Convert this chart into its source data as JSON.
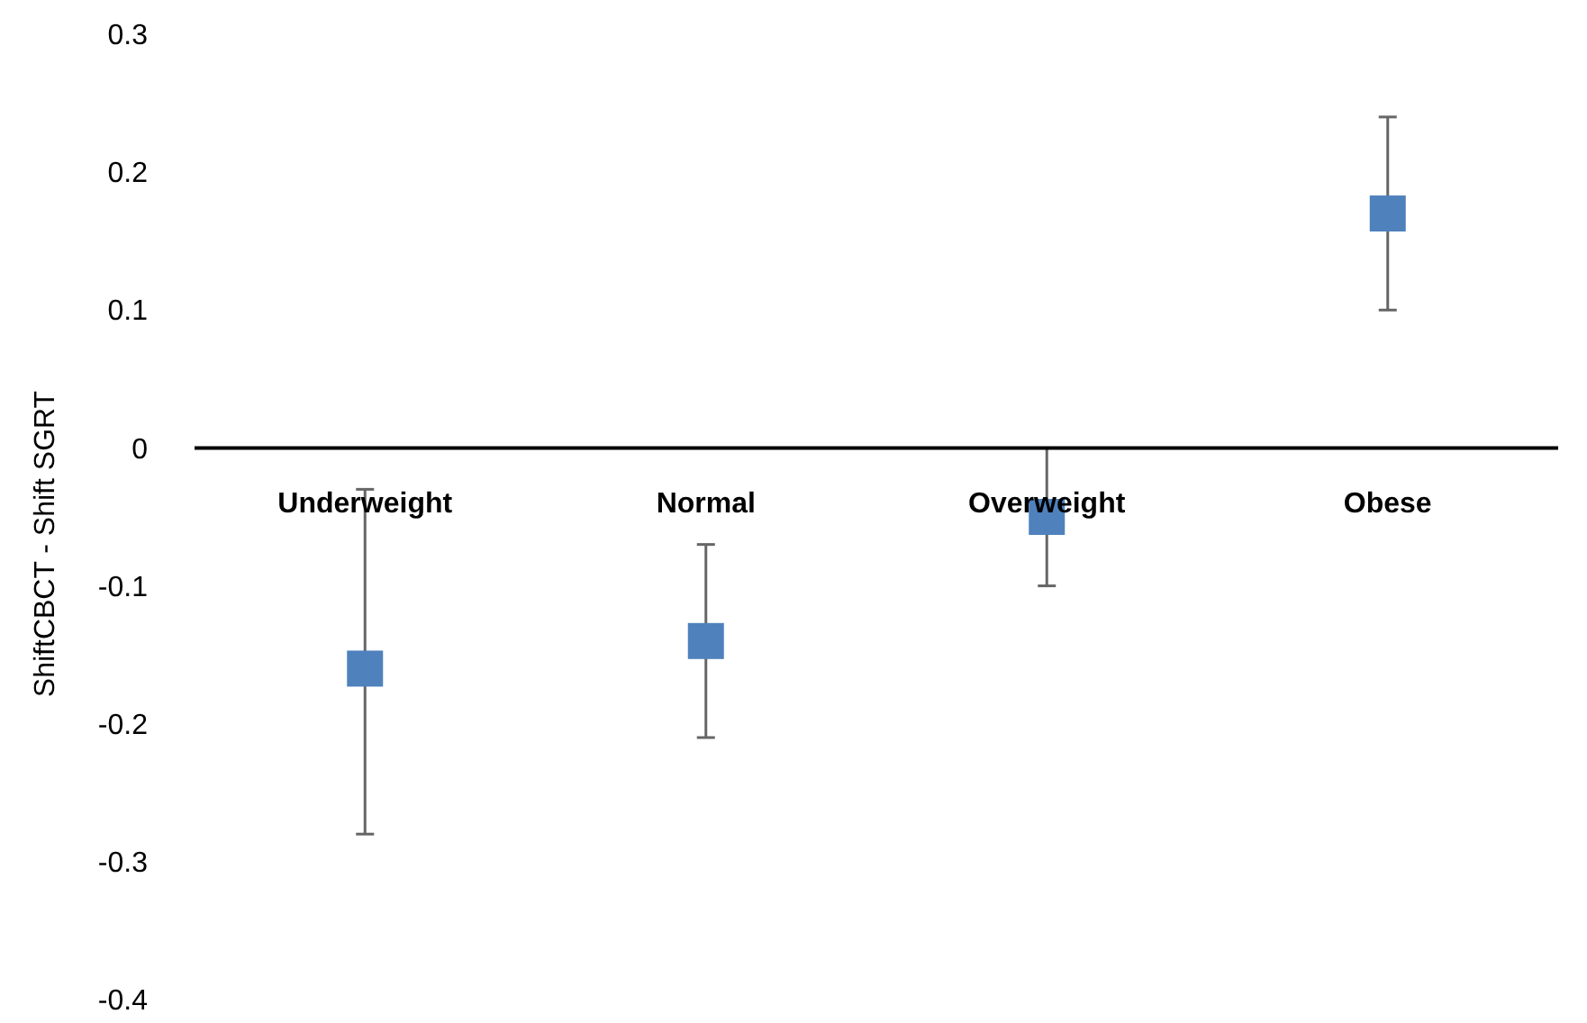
{
  "chart_data": {
    "type": "scatter",
    "ylabel": "ShiftCBCT - Shift SGRT",
    "categories": [
      "Underweight",
      "Normal",
      "Overweight",
      "Obese"
    ],
    "series": [
      {
        "color": "#4f81bd",
        "values": [
          -0.16,
          -0.14,
          -0.05,
          0.17
        ],
        "errors": [
          [
            -0.28,
            -0.03
          ],
          [
            -0.21,
            -0.07
          ],
          [
            -0.1,
            0
          ],
          [
            0.1,
            0.24
          ]
        ]
      }
    ],
    "ylim": [
      -0.4,
      0.3
    ],
    "yticks": [
      -0.4,
      -0.3,
      -0.2,
      -0.1,
      0,
      0.1,
      0.2,
      0.3
    ],
    "marker": "square",
    "grid": false
  }
}
